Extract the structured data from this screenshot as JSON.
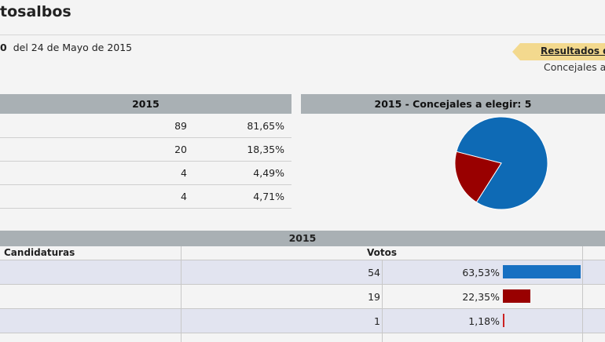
{
  "page": {
    "title": "tosalbos",
    "subtitle_marker": "0",
    "subtitle": "del 24 de Mayo de 2015"
  },
  "ribbon": {
    "label": "Resultados d",
    "sub": "Concejales a"
  },
  "table1": {
    "header": "2015",
    "rows": [
      {
        "value": "89",
        "percent": "81,65%"
      },
      {
        "value": "20",
        "percent": "18,35%"
      },
      {
        "value": "4",
        "percent": "4,49%"
      },
      {
        "value": "4",
        "percent": "4,71%"
      }
    ]
  },
  "pie_panel": {
    "header": "2015 - Concejales a elegir: 5",
    "chart_data": {
      "type": "pie",
      "slices": [
        {
          "value": 4,
          "color": "#0e6ab5"
        },
        {
          "value": 1,
          "color": "#990000"
        }
      ]
    }
  },
  "table2": {
    "header": "2015",
    "col_candidaturas": "Candidaturas",
    "col_votos": "Votos",
    "rows": [
      {
        "votes": "54",
        "percent": "63,53%",
        "fraction": 0.6353,
        "color": "#1770c2"
      },
      {
        "votes": "19",
        "percent": "22,35%",
        "fraction": 0.2235,
        "color": "#990000"
      },
      {
        "votes": "1",
        "percent": "1,18%",
        "fraction": 0.0118,
        "color": "#cc2222"
      }
    ]
  }
}
